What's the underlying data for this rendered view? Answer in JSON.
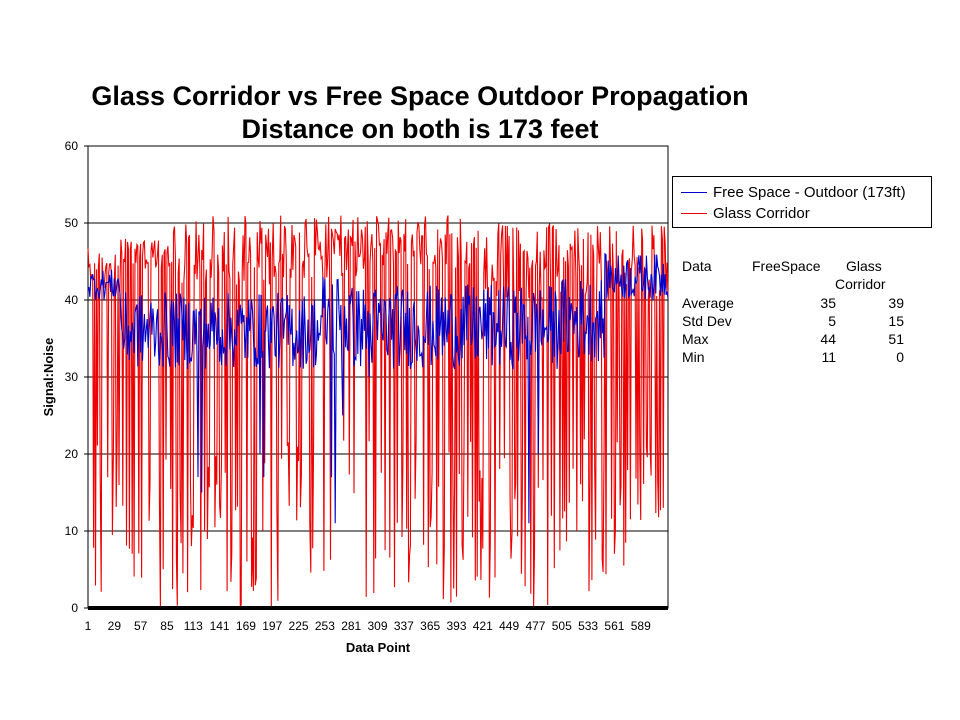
{
  "chart_data": {
    "type": "line",
    "title": "Glass Corridor vs Free Space Outdoor Propagation",
    "subtitle": "Distance on both is 173 feet",
    "xlabel": "Data Point",
    "ylabel": "Signal:Noise",
    "ylim": [
      0,
      60
    ],
    "yticks": [
      "0",
      "10",
      "20",
      "30",
      "40",
      "50",
      "60"
    ],
    "xlim": [
      1,
      618
    ],
    "xticks": [
      "1",
      "29",
      "57",
      "85",
      "113",
      "141",
      "169",
      "197",
      "225",
      "253",
      "281",
      "309",
      "337",
      "365",
      "393",
      "421",
      "449",
      "477",
      "505",
      "533",
      "561",
      "589"
    ],
    "grid": "horizontal",
    "legend_position": "top-right",
    "n_points": 618,
    "series": [
      {
        "name": "Free Space - Outdoor (173ft)",
        "color": "#0000cc",
        "segments": [
          {
            "from": 1,
            "to": 35,
            "min": 40,
            "max": 44
          },
          {
            "from": 36,
            "to": 130,
            "min": 31,
            "max": 41
          },
          {
            "from": 131,
            "to": 250,
            "min": 31,
            "max": 41
          },
          {
            "from": 251,
            "to": 280,
            "min": 31,
            "max": 44
          },
          {
            "from": 281,
            "to": 500,
            "min": 31,
            "max": 42
          },
          {
            "from": 501,
            "to": 550,
            "min": 32,
            "max": 43
          },
          {
            "from": 551,
            "to": 618,
            "min": 40,
            "max": 46
          }
        ],
        "dips": [
          {
            "x": 118,
            "y": 17
          },
          {
            "x": 122,
            "y": 15
          },
          {
            "x": 184,
            "y": 20
          },
          {
            "x": 188,
            "y": 17
          },
          {
            "x": 260,
            "y": 17
          },
          {
            "x": 264,
            "y": 11
          },
          {
            "x": 272,
            "y": 25
          },
          {
            "x": 288,
            "y": 33
          },
          {
            "x": 300,
            "y": 30
          },
          {
            "x": 470,
            "y": 11
          },
          {
            "x": 480,
            "y": 20
          }
        ]
      },
      {
        "name": "Glass Corridor",
        "color": "#ee0000",
        "segments": [
          {
            "from": 1,
            "to": 35,
            "min": 41,
            "max": 47
          },
          {
            "from": 36,
            "to": 90,
            "min": 44,
            "max": 48
          },
          {
            "from": 91,
            "to": 300,
            "min": 42,
            "max": 51
          },
          {
            "from": 301,
            "to": 420,
            "min": 44,
            "max": 51
          },
          {
            "from": 421,
            "to": 618,
            "min": 40,
            "max": 50
          }
        ],
        "drop_probability": 0.33,
        "drop_min": 0,
        "drop_max": 22
      }
    ]
  },
  "legend": {
    "items": [
      {
        "label": "Free Space - Outdoor (173ft)",
        "color": "#0000cc"
      },
      {
        "label": "Glass Corridor",
        "color": "#ee0000"
      }
    ]
  },
  "stats_table": {
    "header": [
      "Data",
      "FreeSpace",
      "Glass"
    ],
    "header2": [
      "",
      "",
      "Corridor"
    ],
    "rows": [
      [
        "Average",
        "35",
        "39"
      ],
      [
        "Std Dev",
        "5",
        "15"
      ],
      [
        "Max",
        "44",
        "51"
      ],
      [
        "Min",
        "11",
        "0"
      ]
    ]
  }
}
